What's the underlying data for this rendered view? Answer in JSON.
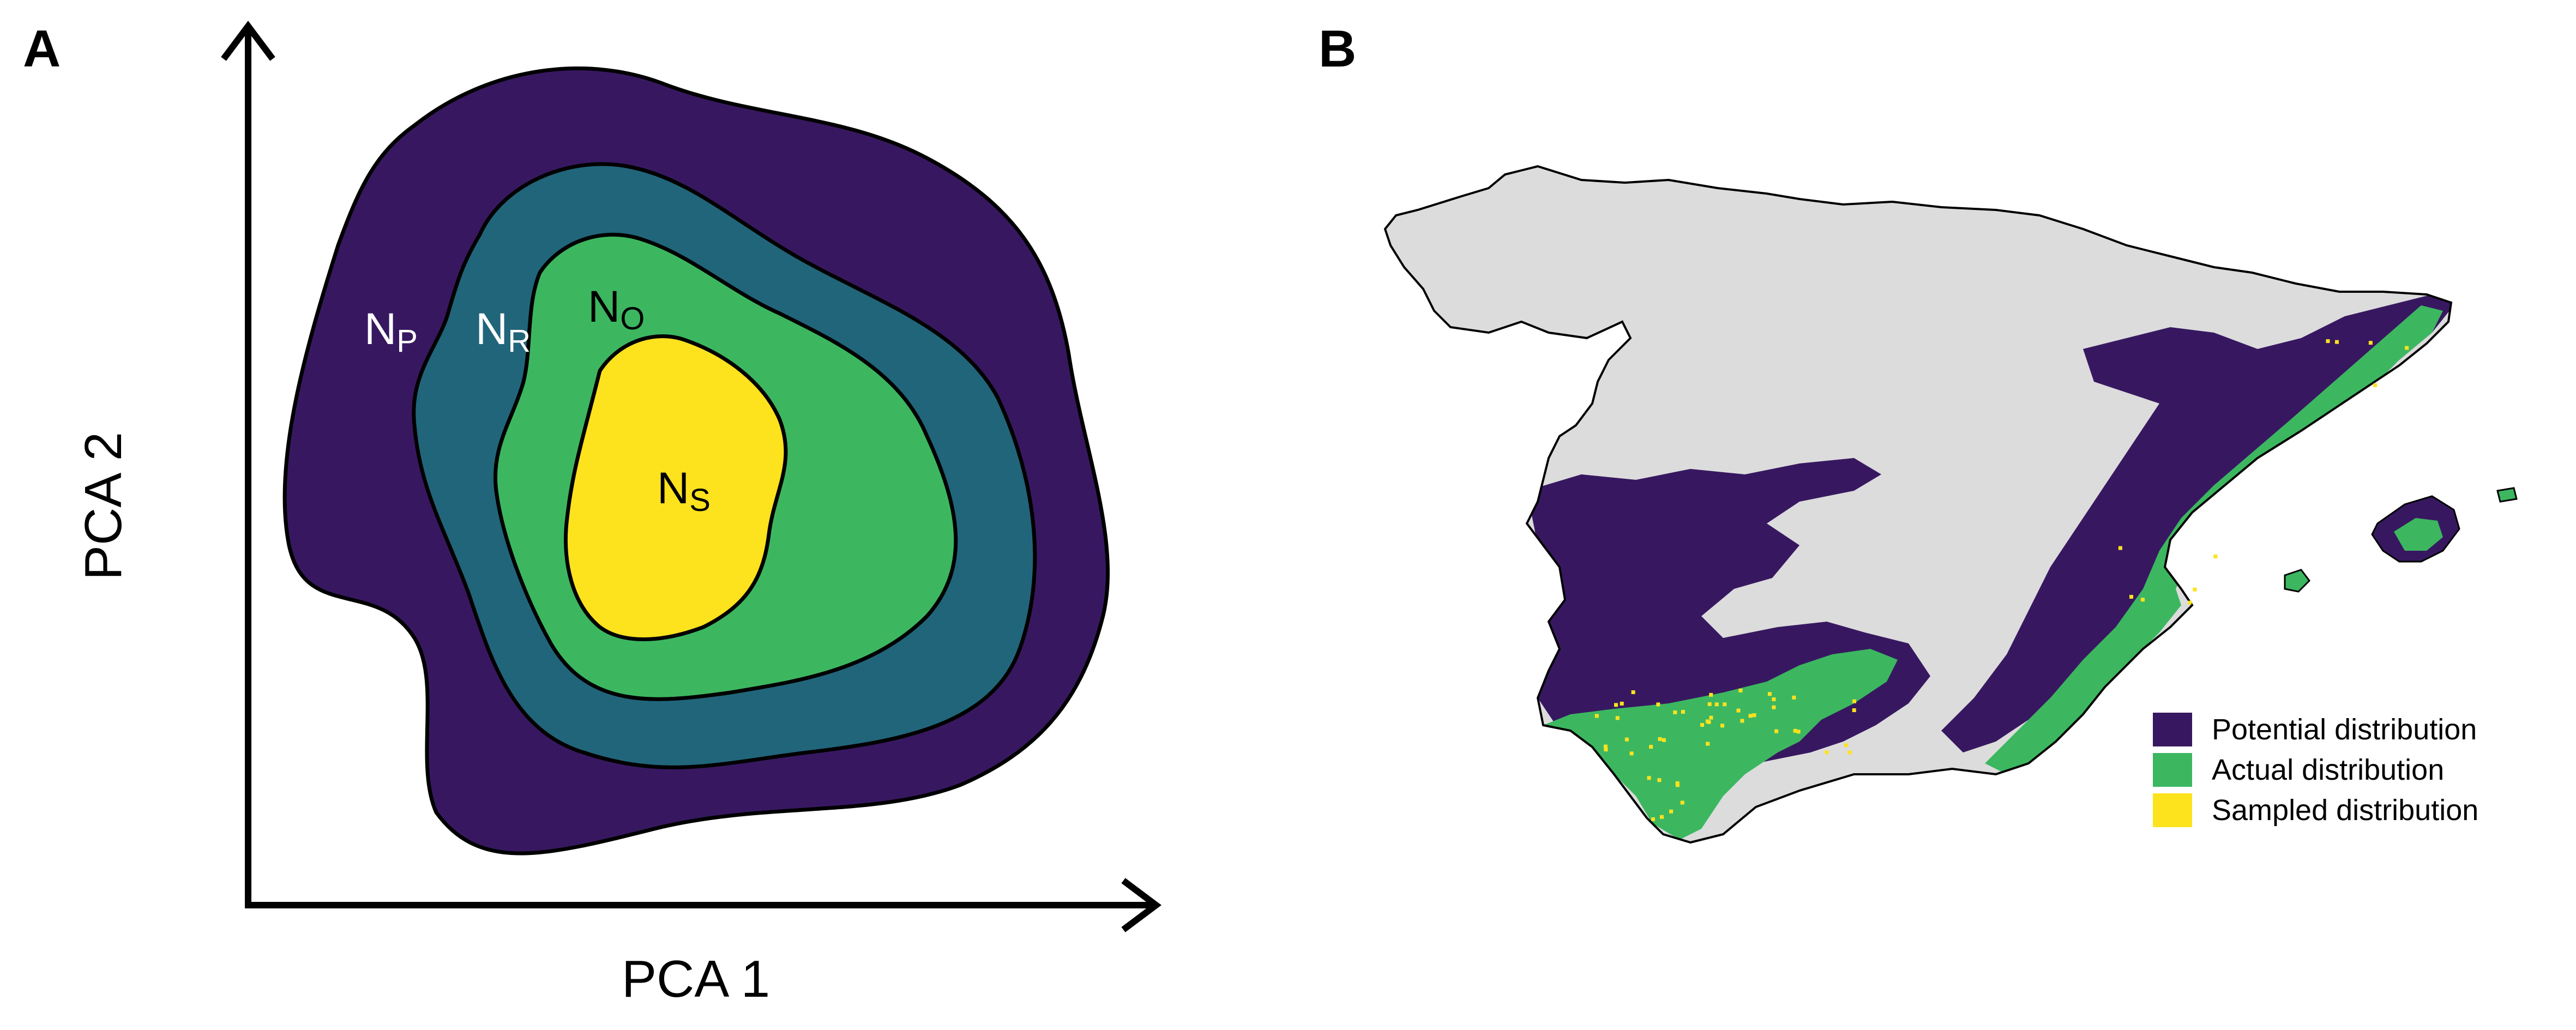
{
  "panel_a": {
    "letter": "A",
    "x_axis_label": "PCA 1",
    "y_axis_label": "PCA 2",
    "niches": [
      {
        "id": "potential",
        "main": "N",
        "sub": "P",
        "color": "#371860",
        "label_color": "#ffffff"
      },
      {
        "id": "realized",
        "main": "N",
        "sub": "R",
        "color": "#21657a",
        "label_color": "#ffffff"
      },
      {
        "id": "occupied",
        "main": "N",
        "sub": "O",
        "color": "#3cb760",
        "label_color": "#000000"
      },
      {
        "id": "sampled",
        "main": "N",
        "sub": "S",
        "color": "#fde21e",
        "label_color": "#000000"
      }
    ]
  },
  "panel_b": {
    "letter": "B",
    "land_color": "#dcdcdc",
    "legend": [
      {
        "label": "Potential distribution",
        "color": "#371860"
      },
      {
        "label": "Actual distribution",
        "color": "#3cb760"
      },
      {
        "label": "Sampled distribution",
        "color": "#fde21e"
      }
    ]
  }
}
